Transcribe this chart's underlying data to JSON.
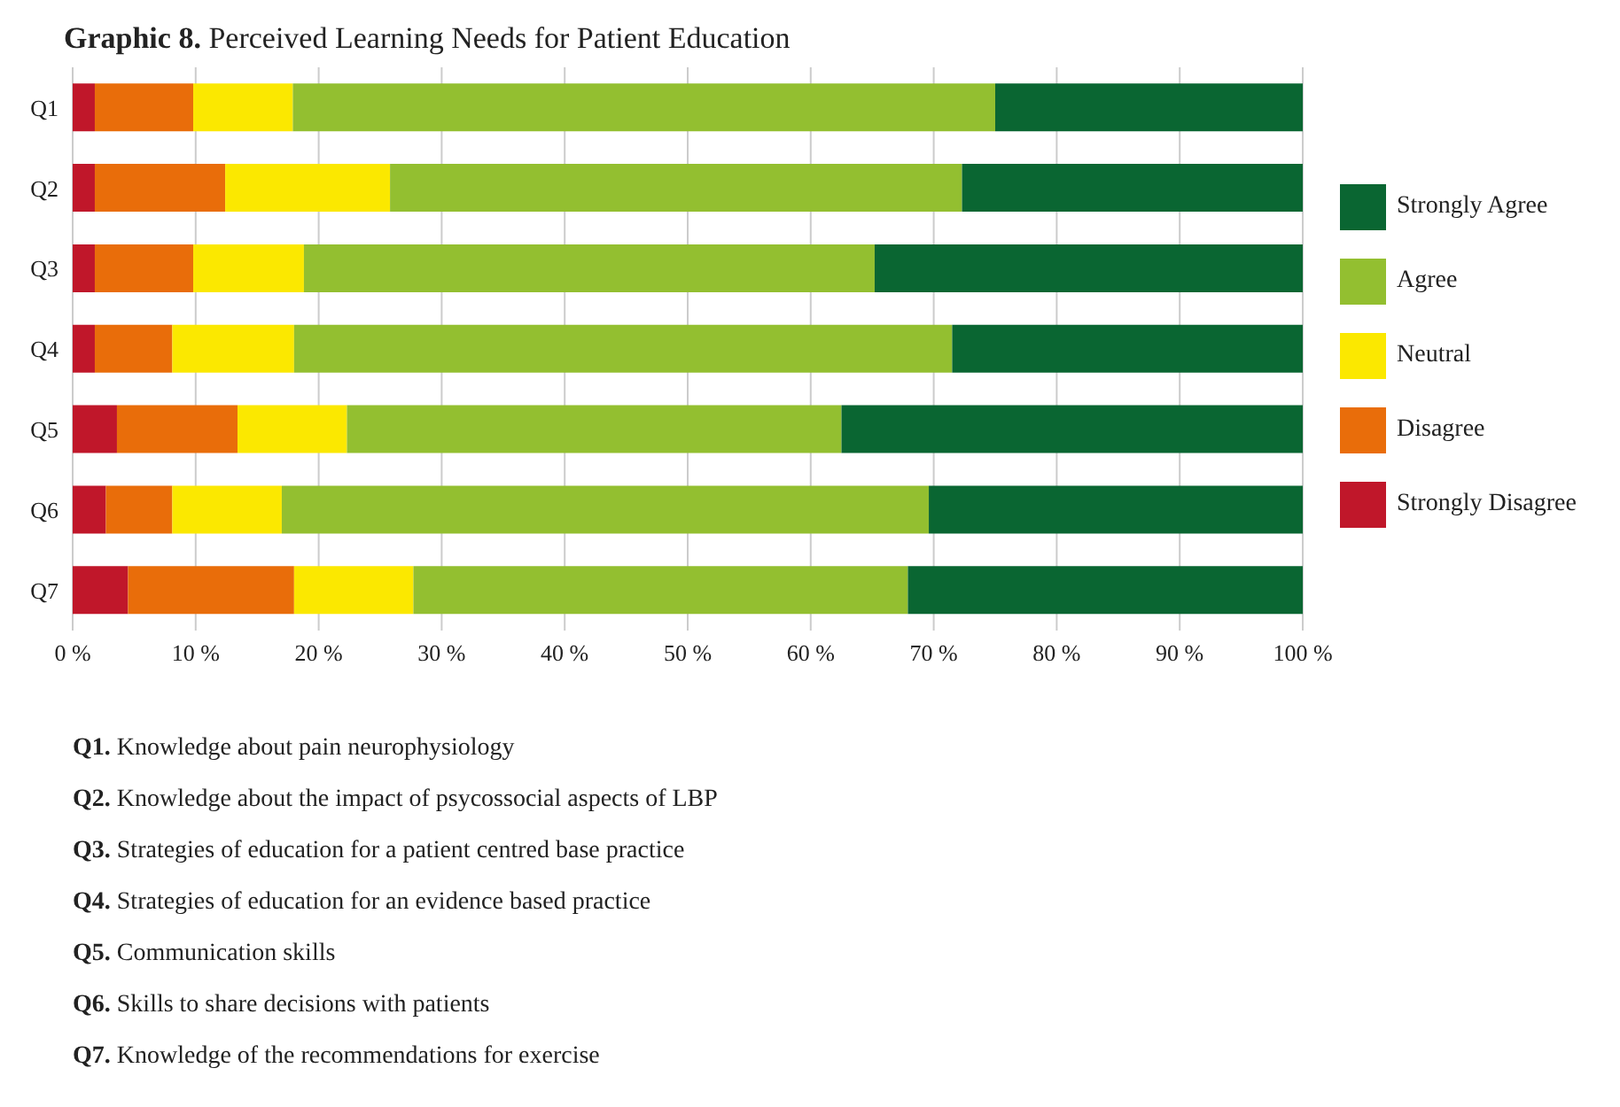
{
  "chart_data": {
    "type": "bar",
    "orientation": "horizontal",
    "stacked": true,
    "title": "Graphic 8. Perceived Learning Needs for Patient Education",
    "categories": [
      "Q1",
      "Q2",
      "Q3",
      "Q4",
      "Q5",
      "Q6",
      "Q7"
    ],
    "series": [
      {
        "name": "Strongly Disagree",
        "color": "#c0172a",
        "values": [
          1.8,
          1.8,
          1.8,
          1.8,
          3.6,
          2.7,
          4.5
        ]
      },
      {
        "name": "Disagree",
        "color": "#e96d0a",
        "values": [
          8.0,
          10.6,
          8.0,
          6.3,
          9.8,
          5.4,
          13.5
        ]
      },
      {
        "name": "Neutral",
        "color": "#fbe800",
        "values": [
          8.1,
          13.4,
          9.0,
          9.9,
          8.9,
          8.9,
          9.7
        ]
      },
      {
        "name": "Agree",
        "color": "#93bf30",
        "values": [
          57.1,
          46.5,
          46.4,
          53.5,
          40.2,
          52.6,
          40.2
        ]
      },
      {
        "name": "Strongly Agree",
        "color": "#0a6632",
        "values": [
          25.0,
          27.7,
          34.8,
          28.5,
          37.5,
          30.4,
          32.1
        ]
      }
    ],
    "xlim": [
      0,
      100
    ],
    "xticks": [
      {
        "value": 0,
        "label": "0 %"
      },
      {
        "value": 10,
        "label": "10 %"
      },
      {
        "value": 20,
        "label": "20 %"
      },
      {
        "value": 30,
        "label": "30 %"
      },
      {
        "value": 40,
        "label": "40 %"
      },
      {
        "value": 50,
        "label": "50 %"
      },
      {
        "value": 60,
        "label": "60 %"
      },
      {
        "value": 70,
        "label": "70 %"
      },
      {
        "value": 80,
        "label": "80 %"
      },
      {
        "value": 90,
        "label": "90 %"
      },
      {
        "value": 100,
        "label": "100 %"
      }
    ],
    "grid": "x",
    "legend": "right",
    "annotations": [
      "Q1. Knowledge about pain neurophysiology",
      "Q2. Knowledge about the impact of psycossocial aspects of LBP",
      "Q3. Strategies of education for a patient centred base practice",
      "Q4. Strategies of education for an evidence based practice",
      "Q5. Communication skills",
      "Q6. Skills to share decisions with patients",
      "Q7. Knowledge of the recommendations for exercise"
    ]
  }
}
